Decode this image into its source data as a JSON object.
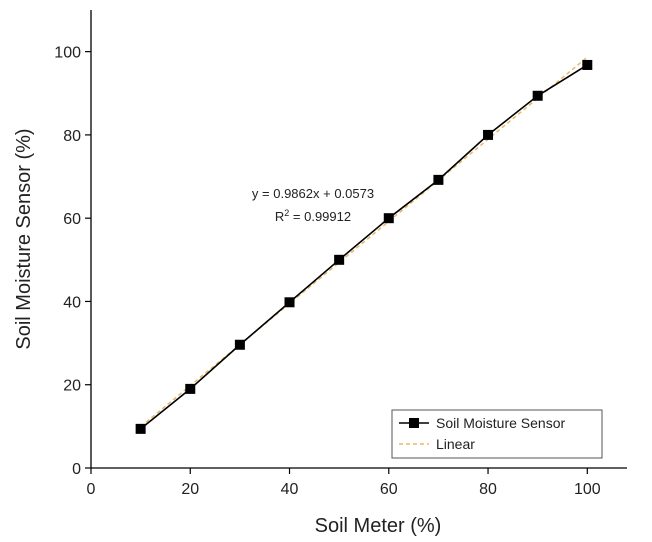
{
  "chart_data": {
    "type": "line",
    "xlabel": "Soil Meter (%)",
    "ylabel": "Soil Moisture Sensor (%)",
    "xlim": [
      0,
      108
    ],
    "ylim": [
      0,
      110
    ],
    "xticks": [
      0,
      20,
      40,
      60,
      80,
      100
    ],
    "yticks": [
      0,
      20,
      40,
      60,
      80,
      100
    ],
    "grid": false,
    "legend_position": "bottom-right",
    "series": [
      {
        "name": "Soil Moisture Sensor",
        "color": "#000000",
        "marker": "square",
        "x": [
          10,
          20,
          30,
          40,
          50,
          60,
          70,
          80,
          90,
          100
        ],
        "y": [
          9.4,
          19.0,
          29.6,
          39.8,
          50.0,
          60.0,
          69.2,
          80.0,
          89.4,
          96.8
        ]
      },
      {
        "name": "Linear",
        "color": "#E8B866",
        "style": "dashed",
        "slope": 0.9862,
        "intercept": 0.0573
      }
    ],
    "annotation": {
      "equation": "y = 0.9862x + 0.0573",
      "r2_prefix": "R",
      "r2_sup": "2",
      "r2_value": " = 0.99912"
    }
  }
}
